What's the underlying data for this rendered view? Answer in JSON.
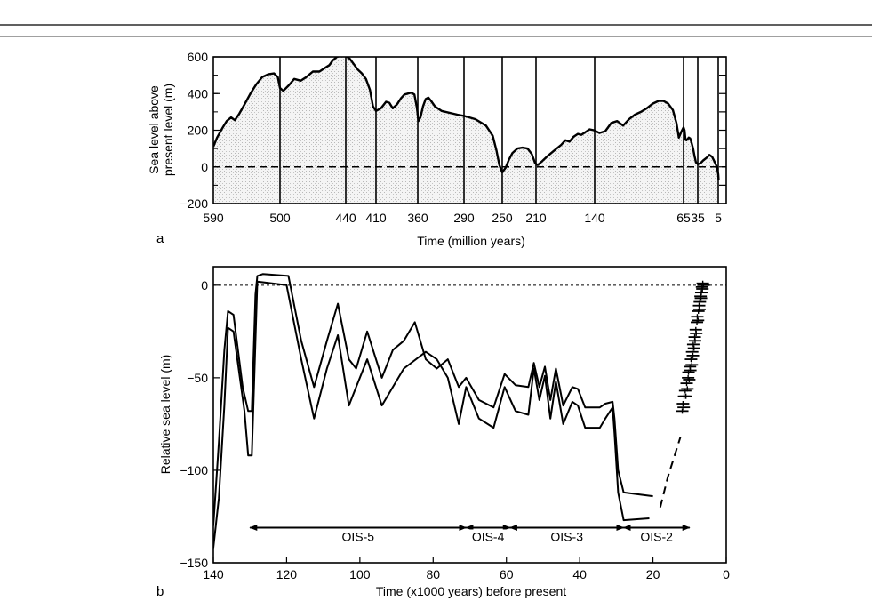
{
  "chart_data": [
    {
      "panel": "a",
      "type": "area",
      "xlabel": "Time (million years)",
      "ylabel": "Sea level above present level (m)",
      "ylabel_lines": [
        "Sea level above",
        "present level (m)"
      ],
      "x_ticks": [
        "590",
        "500",
        "440",
        "410",
        "360",
        "290",
        "250",
        "210",
        "140",
        "65",
        "35",
        "5"
      ],
      "y_ticks": [
        "600",
        "400",
        "200",
        "0",
        "−200"
      ],
      "ylim": [
        -200,
        600
      ],
      "reference_line": 0,
      "series": [
        {
          "values": [
            [
              590,
              110
            ],
            [
              585,
              160
            ],
            [
              578,
              210
            ],
            [
              572,
              250
            ],
            [
              566,
              270
            ],
            [
              561,
              255
            ],
            [
              555,
              290
            ],
            [
              548,
              340
            ],
            [
              540,
              400
            ],
            [
              532,
              450
            ],
            [
              524,
              490
            ],
            [
              516,
              505
            ],
            [
              508,
              510
            ],
            [
              503,
              490
            ],
            [
              500,
              430
            ],
            [
              497,
              415
            ],
            [
              492,
              445
            ],
            [
              487,
              480
            ],
            [
              481,
              470
            ],
            [
              476,
              490
            ],
            [
              470,
              520
            ],
            [
              464,
              520
            ],
            [
              459,
              540
            ],
            [
              455,
              555
            ],
            [
              452,
              580
            ],
            [
              448,
              600
            ],
            [
              444,
              610
            ],
            [
              440,
              605
            ],
            [
              436,
              590
            ],
            [
              432,
              560
            ],
            [
              428,
              530
            ],
            [
              424,
              510
            ],
            [
              420,
              480
            ],
            [
              416,
              420
            ],
            [
              413,
              330
            ],
            [
              410,
              305
            ],
            [
              404,
              320
            ],
            [
              398,
              355
            ],
            [
              394,
              350
            ],
            [
              390,
              320
            ],
            [
              385,
              340
            ],
            [
              380,
              375
            ],
            [
              376,
              395
            ],
            [
              372,
              400
            ],
            [
              368,
              405
            ],
            [
              364,
              395
            ],
            [
              361,
              320
            ],
            [
              359,
              250
            ],
            [
              356,
              270
            ],
            [
              352,
              330
            ],
            [
              348,
              370
            ],
            [
              344,
              378
            ],
            [
              340,
              360
            ],
            [
              334,
              330
            ],
            [
              324,
              305
            ],
            [
              312,
              295
            ],
            [
              300,
              285
            ],
            [
              290,
              278
            ],
            [
              278,
              260
            ],
            [
              267,
              225
            ],
            [
              260,
              170
            ],
            [
              256,
              90
            ],
            [
              253,
              10
            ],
            [
              250,
              -30
            ],
            [
              246,
              -5
            ],
            [
              242,
              40
            ],
            [
              238,
              75
            ],
            [
              232,
              100
            ],
            [
              226,
              105
            ],
            [
              220,
              100
            ],
            [
              215,
              70
            ],
            [
              211,
              20
            ],
            [
              208,
              10
            ],
            [
              203,
              30
            ],
            [
              196,
              60
            ],
            [
              188,
              90
            ],
            [
              180,
              120
            ],
            [
              175,
              145
            ],
            [
              170,
              138
            ],
            [
              165,
              165
            ],
            [
              160,
              180
            ],
            [
              156,
              175
            ],
            [
              151,
              190
            ],
            [
              146,
              205
            ],
            [
              141,
              200
            ],
            [
              136,
              185
            ],
            [
              131,
              195
            ],
            [
              126,
              240
            ],
            [
              121,
              250
            ],
            [
              116,
              225
            ],
            [
              111,
              260
            ],
            [
              106,
              285
            ],
            [
              101,
              300
            ],
            [
              96,
              320
            ],
            [
              91,
              345
            ],
            [
              86,
              360
            ],
            [
              82,
              360
            ],
            [
              78,
              345
            ],
            [
              74,
              310
            ],
            [
              71,
              240
            ],
            [
              69,
              160
            ],
            [
              67,
              190
            ],
            [
              65,
              215
            ],
            [
              63,
              200
            ],
            [
              61,
              150
            ],
            [
              59,
              145
            ],
            [
              57,
              150
            ],
            [
              54,
              160
            ],
            [
              51,
              155
            ],
            [
              48,
              130
            ],
            [
              45,
              100
            ],
            [
              42,
              60
            ],
            [
              39,
              25
            ],
            [
              35,
              15
            ],
            [
              31,
              20
            ],
            [
              27,
              35
            ],
            [
              22,
              50
            ],
            [
              18,
              65
            ],
            [
              14,
              55
            ],
            [
              10,
              25
            ],
            [
              7,
              0
            ],
            [
              5,
              -40
            ],
            [
              4.5,
              -70
            ]
          ]
        }
      ],
      "vertical_lines": [
        500,
        440,
        410,
        360,
        290,
        250,
        210,
        140,
        65,
        35,
        5
      ]
    },
    {
      "panel": "b",
      "type": "line",
      "xlabel": "Time (x1000 years) before present",
      "ylabel": "Relative sea level (m)",
      "x_ticks": [
        "140",
        "120",
        "100",
        "80",
        "60",
        "40",
        "20",
        "0"
      ],
      "y_ticks": [
        "0",
        "−50",
        "−100",
        "−150"
      ],
      "xlim": [
        140,
        0
      ],
      "ylim": [
        -150,
        10
      ],
      "reference_line": 0,
      "series": [
        {
          "values": [
            [
              140,
              -130
            ],
            [
              138.5,
              -85
            ],
            [
              137,
              -35
            ],
            [
              136,
              -14
            ],
            [
              134.5,
              -16
            ],
            [
              132,
              -55
            ],
            [
              130.5,
              -68
            ],
            [
              129.5,
              -68
            ],
            [
              128.5,
              -5
            ],
            [
              128,
              5
            ],
            [
              126.5,
              6
            ],
            [
              119.5,
              5
            ],
            [
              116,
              -30
            ],
            [
              112.5,
              -55
            ],
            [
              109,
              -30
            ],
            [
              106,
              -10
            ],
            [
              103,
              -40
            ],
            [
              101,
              -45
            ],
            [
              98,
              -25
            ],
            [
              94,
              -50
            ],
            [
              91,
              -35
            ],
            [
              88,
              -30
            ],
            [
              85,
              -20
            ],
            [
              82,
              -40
            ],
            [
              79,
              -45
            ],
            [
              76,
              -40
            ],
            [
              73,
              -55
            ],
            [
              71,
              -50
            ],
            [
              67.5,
              -62
            ],
            [
              63.5,
              -66
            ],
            [
              60.5,
              -48
            ],
            [
              57.5,
              -54
            ],
            [
              54,
              -55
            ],
            [
              52.5,
              -42
            ],
            [
              51,
              -55
            ],
            [
              49.5,
              -44
            ],
            [
              48,
              -62
            ],
            [
              46.5,
              -45
            ],
            [
              44.5,
              -65
            ],
            [
              42,
              -55
            ],
            [
              40.5,
              -56
            ],
            [
              38.5,
              -66
            ],
            [
              34.5,
              -66
            ],
            [
              33,
              -64
            ],
            [
              31,
              -63
            ],
            [
              30.5,
              -72
            ],
            [
              29.5,
              -100
            ],
            [
              28,
              -112
            ],
            [
              20,
              -114
            ]
          ]
        },
        {
          "values": [
            [
              140,
              -142
            ],
            [
              138.5,
              -115
            ],
            [
              137,
              -65
            ],
            [
              136,
              -23
            ],
            [
              134.5,
              -25
            ],
            [
              131.5,
              -68
            ],
            [
              130.5,
              -92
            ],
            [
              129.5,
              -92
            ],
            [
              128,
              2
            ],
            [
              120,
              0
            ],
            [
              116,
              -40
            ],
            [
              112.5,
              -72
            ],
            [
              109,
              -45
            ],
            [
              106,
              -27
            ],
            [
              103,
              -65
            ],
            [
              101,
              -55
            ],
            [
              98,
              -40
            ],
            [
              94,
              -65
            ],
            [
              88,
              -45
            ],
            [
              82,
              -36
            ],
            [
              79,
              -40
            ],
            [
              76,
              -50
            ],
            [
              73,
              -75
            ],
            [
              71,
              -55
            ],
            [
              67.5,
              -72
            ],
            [
              63.5,
              -77
            ],
            [
              60.5,
              -55
            ],
            [
              57.5,
              -68
            ],
            [
              54,
              -70
            ],
            [
              52.5,
              -45
            ],
            [
              51,
              -62
            ],
            [
              49.5,
              -49
            ],
            [
              48,
              -72
            ],
            [
              46.5,
              -52
            ],
            [
              44.5,
              -75
            ],
            [
              42,
              -63
            ],
            [
              40.5,
              -65
            ],
            [
              38.5,
              -77
            ],
            [
              34.5,
              -77
            ],
            [
              33,
              -72
            ],
            [
              31,
              -66
            ],
            [
              30.5,
              -80
            ],
            [
              29.5,
              -112
            ],
            [
              28,
              -127
            ],
            [
              21,
              -126
            ]
          ]
        }
      ],
      "dashed_trend": [
        [
          18,
          -120
        ],
        [
          16,
          -104
        ],
        [
          12.5,
          -82
        ]
      ],
      "data_points": [
        [
          12,
          -68
        ],
        [
          11.8,
          -64
        ],
        [
          11.6,
          -66
        ],
        [
          11.5,
          -60
        ],
        [
          11.2,
          -57
        ],
        [
          11,
          -60
        ],
        [
          10.8,
          -53
        ],
        [
          10.6,
          -56
        ],
        [
          10.4,
          -50
        ],
        [
          10.3,
          -47
        ],
        [
          10.1,
          -51
        ],
        [
          9.9,
          -44
        ],
        [
          9.8,
          -46
        ],
        [
          9.6,
          -40
        ],
        [
          9.4,
          -43
        ],
        [
          9.3,
          -36
        ],
        [
          9.1,
          -38
        ],
        [
          9,
          -32
        ],
        [
          8.8,
          -34
        ],
        [
          8.6,
          -28
        ],
        [
          8.5,
          -30
        ],
        [
          8.3,
          -24
        ],
        [
          8.2,
          -26
        ],
        [
          8,
          -20
        ],
        [
          7.9,
          -17
        ],
        [
          7.7,
          -19
        ],
        [
          7.6,
          -14
        ],
        [
          7.4,
          -11
        ],
        [
          7.3,
          -13
        ],
        [
          7.2,
          -9
        ],
        [
          7,
          -6
        ],
        [
          6.9,
          -7
        ],
        [
          6.8,
          -4
        ],
        [
          6.6,
          -1
        ],
        [
          6.5,
          -2
        ],
        [
          6.4,
          1
        ],
        [
          6.2,
          0
        ]
      ],
      "intervals": [
        {
          "label": "OIS-5",
          "from": 130,
          "to": 71
        },
        {
          "label": "OIS-4",
          "from": 71,
          "to": 59
        },
        {
          "label": "OIS-3",
          "from": 59,
          "to": 28
        },
        {
          "label": "OIS-2",
          "from": 28,
          "to": 10
        }
      ],
      "interval_arrow_y": -131
    }
  ]
}
